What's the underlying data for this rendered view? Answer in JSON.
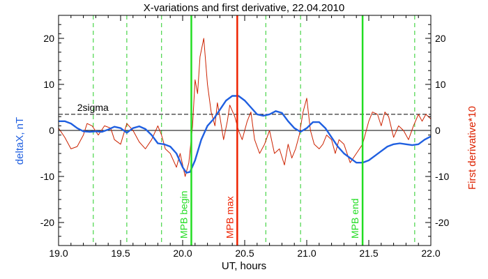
{
  "chart_data": {
    "type": "line",
    "title": "X-variations and first derivative, 22.04.2010",
    "xlabel": "UT, hours",
    "ylabel_left": "deltaX, nT",
    "ylabel_right": "First derivative*10",
    "xlim": [
      19.0,
      22.0
    ],
    "ylim": [
      -25,
      25
    ],
    "x_ticks": [
      "19.0",
      "19.5",
      "20.0",
      "20.5",
      "21.0",
      "21.5",
      "22.0"
    ],
    "y_ticks_left": [
      "20",
      "10",
      "0",
      "-10",
      "-20"
    ],
    "y_ticks_right": [
      "20",
      "10",
      "0",
      "-10",
      "-20"
    ],
    "colors": {
      "deltaX": "#1f5fe0",
      "derivative": "#cc2200",
      "mpb": "#22dd22",
      "max": "#ee2200",
      "dashed": "#22cc22",
      "left_label": "#1f5fe0",
      "right_label": "#dd2200"
    },
    "threshold": {
      "label": "2sigma",
      "y": 3.5
    },
    "dashed_verticals": [
      19.28,
      19.55,
      19.83,
      20.67,
      20.95,
      21.87
    ],
    "markers": [
      {
        "x": 20.07,
        "label": "MPB begin",
        "color": "#22dd22"
      },
      {
        "x": 20.44,
        "label": "MPB max",
        "color": "#ee2200"
      },
      {
        "x": 21.45,
        "label": "MPB end",
        "color": "#22dd22"
      }
    ],
    "series": [
      {
        "key": "deltaX",
        "x": [
          19.0,
          19.05,
          19.1,
          19.15,
          19.2,
          19.25,
          19.3,
          19.35,
          19.4,
          19.45,
          19.5,
          19.55,
          19.6,
          19.65,
          19.7,
          19.75,
          19.8,
          19.85,
          19.9,
          19.95,
          20.0,
          20.03,
          20.06,
          20.1,
          20.15,
          20.2,
          20.25,
          20.3,
          20.35,
          20.4,
          20.45,
          20.5,
          20.55,
          20.6,
          20.65,
          20.7,
          20.75,
          20.8,
          20.85,
          20.9,
          20.95,
          21.0,
          21.05,
          21.1,
          21.15,
          21.2,
          21.25,
          21.3,
          21.35,
          21.4,
          21.45,
          21.5,
          21.55,
          21.6,
          21.65,
          21.7,
          21.75,
          21.8,
          21.85,
          21.9,
          21.95,
          22.0
        ],
        "y": [
          2.0,
          2.0,
          1.5,
          0.5,
          -0.2,
          -0.3,
          -0.2,
          -0.3,
          0.2,
          0.8,
          0.5,
          -0.5,
          0.5,
          0.9,
          0.3,
          -1.0,
          -2.8,
          -3.0,
          -3.5,
          -5.0,
          -8.0,
          -9.2,
          -9.0,
          -6.5,
          -2.0,
          1.0,
          2.5,
          4.5,
          6.5,
          7.5,
          7.5,
          6.5,
          5.0,
          3.5,
          3.2,
          3.5,
          4.2,
          3.8,
          2.0,
          0.5,
          -0.3,
          0.5,
          1.8,
          1.8,
          0.5,
          -1.5,
          -3.5,
          -5.0,
          -6.0,
          -7.0,
          -7.0,
          -6.5,
          -5.5,
          -4.5,
          -3.5,
          -3.0,
          -2.8,
          -3.0,
          -3.2,
          -3.0,
          -2.0,
          -1.3
        ]
      },
      {
        "key": "derivative",
        "x": [
          19.0,
          19.05,
          19.1,
          19.15,
          19.2,
          19.23,
          19.27,
          19.32,
          19.37,
          19.42,
          19.45,
          19.5,
          19.55,
          19.6,
          19.65,
          19.7,
          19.75,
          19.8,
          19.83,
          19.86,
          19.9,
          19.95,
          19.98,
          20.02,
          20.05,
          20.08,
          20.1,
          20.12,
          20.14,
          20.17,
          20.2,
          20.23,
          20.26,
          20.28,
          20.3,
          20.33,
          20.36,
          20.38,
          20.42,
          20.45,
          20.48,
          20.52,
          20.55,
          20.58,
          20.62,
          20.66,
          20.7,
          20.74,
          20.78,
          20.82,
          20.85,
          20.88,
          20.91,
          20.94,
          20.97,
          21.0,
          21.03,
          21.06,
          21.1,
          21.13,
          21.16,
          21.2,
          21.23,
          21.26,
          21.3,
          21.35,
          21.4,
          21.45,
          21.48,
          21.5,
          21.53,
          21.57,
          21.6,
          21.63,
          21.66,
          21.7,
          21.74,
          21.78,
          21.82,
          21.86,
          21.9,
          21.93,
          21.96,
          22.0
        ],
        "y": [
          0.5,
          -1.5,
          -4.0,
          -3.5,
          -1.0,
          1.5,
          1.0,
          -1.0,
          1.0,
          0.5,
          -2.0,
          -3.0,
          1.5,
          0.0,
          -2.5,
          -4.0,
          -2.0,
          1.0,
          -1.0,
          -4.0,
          -5.0,
          -8.0,
          -5.0,
          -10.0,
          -7.0,
          1.0,
          11.0,
          8.0,
          16.0,
          20.0,
          10.0,
          4.0,
          1.0,
          6.0,
          3.0,
          -2.0,
          2.0,
          5.5,
          3.0,
          0.0,
          -2.0,
          2.0,
          4.0,
          -2.0,
          -5.0,
          -3.0,
          0.0,
          -5.0,
          -4.0,
          -7.5,
          -3.0,
          -6.0,
          -4.0,
          -1.0,
          4.0,
          7.0,
          0.0,
          -3.0,
          -4.0,
          -3.0,
          -1.0,
          -2.0,
          -5.0,
          -2.0,
          -3.0,
          -7.0,
          -5.0,
          -3.0,
          0.0,
          2.0,
          4.0,
          3.5,
          1.0,
          4.0,
          3.0,
          -1.5,
          1.0,
          0.0,
          -2.0,
          1.0,
          3.5,
          2.0,
          3.5,
          2.5
        ]
      }
    ],
    "grid": false
  }
}
